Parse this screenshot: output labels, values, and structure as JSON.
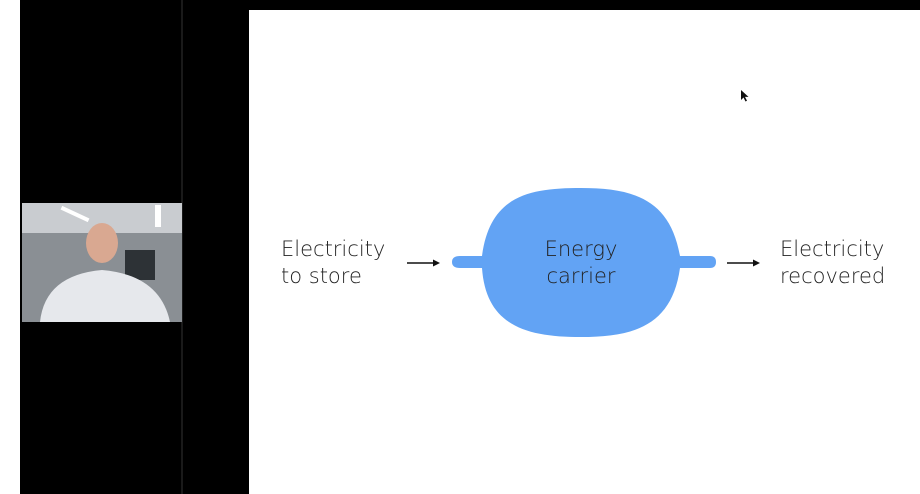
{
  "slide": {
    "left_label": [
      "Electricity",
      "to store"
    ],
    "center_label": [
      "Energy",
      "carrier"
    ],
    "right_label": [
      "Electricity",
      "recovered"
    ]
  }
}
